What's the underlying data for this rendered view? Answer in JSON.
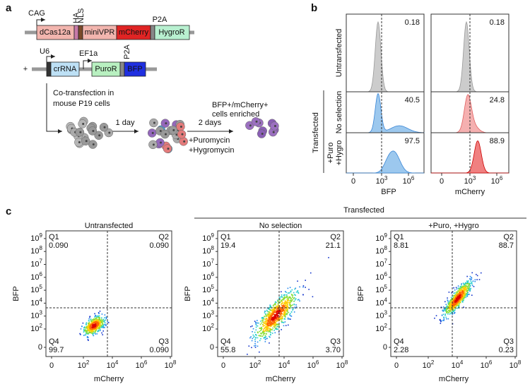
{
  "a": {
    "label": "a",
    "cag": "CAG",
    "ha": "HA",
    "nls": "NLS",
    "p2a1": "P2A",
    "dcas": "dCas12a",
    "minivpr": "miniVPR",
    "mcherry": "mCherry",
    "hygror": "HygroR",
    "plus": "+",
    "u6": "U6",
    "ef1a": "EF1a",
    "p2a2": "P2A",
    "crrna": "crRNA",
    "puror": "PuroR",
    "bfp": "BFP",
    "cotrans": [
      "Co-transfection in",
      "mouse P19 cells"
    ],
    "day1": "1 day",
    "days2": "2 days",
    "drugs": [
      "+Puromycin",
      "+Hygromycin"
    ],
    "enriched": [
      "BFP+/mCherry+",
      "cells enriched"
    ]
  },
  "b": {
    "label": "b",
    "group": "Transfected",
    "rows": [
      [
        "Untransfected"
      ],
      [
        "No selection"
      ],
      [
        "+Puro",
        "+Hygro"
      ]
    ],
    "columns": [
      {
        "xlabel": "BFP",
        "values": [
          "0.18",
          "40.5",
          "97.5"
        ]
      },
      {
        "xlabel": "mCherry",
        "values": [
          "0.18",
          "24.8",
          "88.9"
        ]
      }
    ],
    "xticks": [
      "0",
      {
        "base": "10",
        "exp": "3"
      },
      {
        "base": "10",
        "exp": "6"
      }
    ]
  },
  "c": {
    "label": "c",
    "group": "Transfected",
    "ylabel": "BFP",
    "xlabel": "mCherry",
    "yticks": [
      "0",
      {
        "base": "10",
        "exp": "2"
      },
      {
        "base": "10",
        "exp": "3"
      },
      {
        "base": "10",
        "exp": "4"
      },
      {
        "base": "10",
        "exp": "5"
      },
      {
        "base": "10",
        "exp": "6"
      },
      {
        "base": "10",
        "exp": "7"
      },
      {
        "base": "10",
        "exp": "8"
      },
      {
        "base": "10",
        "exp": "9"
      }
    ],
    "xticks": [
      "0",
      {
        "base": "10",
        "exp": "2"
      },
      {
        "base": "10",
        "exp": "4"
      },
      {
        "base": "10",
        "exp": "6"
      },
      {
        "base": "10",
        "exp": "8"
      }
    ],
    "plots": [
      {
        "title": "Untransfected",
        "quadrants": [
          {
            "name": "Q1",
            "value": "0.090"
          },
          {
            "name": "Q2",
            "value": "0.090"
          },
          {
            "name": "Q4",
            "value": "99.7"
          },
          {
            "name": "Q3",
            "value": "0.090"
          }
        ]
      },
      {
        "title": "No selection",
        "quadrants": [
          {
            "name": "Q1",
            "value": "19.4"
          },
          {
            "name": "Q2",
            "value": "21.1"
          },
          {
            "name": "Q4",
            "value": "55.8"
          },
          {
            "name": "Q3",
            "value": "3.70"
          }
        ]
      },
      {
        "title": "+Puro, +Hygro",
        "quadrants": [
          {
            "name": "Q1",
            "value": "8.81"
          },
          {
            "name": "Q2",
            "value": "88.7"
          },
          {
            "name": "Q4",
            "value": "2.28"
          },
          {
            "name": "Q3",
            "value": "0.23"
          }
        ]
      }
    ]
  }
}
